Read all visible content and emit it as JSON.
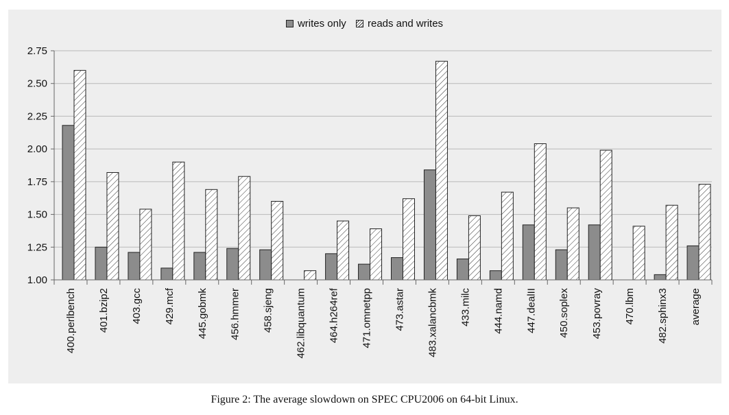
{
  "chart_data": {
    "type": "bar",
    "categories": [
      "400.perlbench",
      "401.bzip2",
      "403.gcc",
      "429.mcf",
      "445.gobmk",
      "456.hmmer",
      "458.sjeng",
      "462.libquantum",
      "464.h264ref",
      "471.omnetpp",
      "473.astar",
      "483.xalancbmk",
      "433.milc",
      "444.namd",
      "447.dealII",
      "450.soplex",
      "453.povray",
      "470.lbm",
      "482.sphinx3",
      "average"
    ],
    "series": [
      {
        "name": "writes only",
        "values": [
          2.18,
          1.25,
          1.21,
          1.09,
          1.21,
          1.24,
          1.23,
          1.0,
          1.2,
          1.12,
          1.17,
          1.84,
          1.16,
          1.07,
          1.42,
          1.23,
          1.42,
          1.0,
          1.04,
          1.26
        ]
      },
      {
        "name": "reads and writes",
        "values": [
          2.6,
          1.82,
          1.54,
          1.9,
          1.69,
          1.79,
          1.6,
          1.07,
          1.45,
          1.39,
          1.62,
          2.67,
          1.49,
          1.67,
          2.04,
          1.55,
          1.99,
          1.41,
          1.57,
          1.73
        ]
      }
    ],
    "yticks": [
      "1.00",
      "1.25",
      "1.50",
      "1.75",
      "2.00",
      "2.25",
      "2.50",
      "2.75"
    ],
    "ylim": [
      1.0,
      2.75
    ],
    "grid": true,
    "legend_position": "top-center",
    "title": "",
    "xlabel": "",
    "ylabel": ""
  },
  "legend": {
    "writes": "writes only",
    "rw": "reads and writes"
  },
  "caption": "Figure 2: The average slowdown on SPEC CPU2006 on 64-bit Linux.",
  "colors": {
    "writes_fill": "#8c8c8c",
    "panel_bg": "#eeeeee",
    "grid": "#b8b8b8",
    "stroke": "#222222"
  }
}
